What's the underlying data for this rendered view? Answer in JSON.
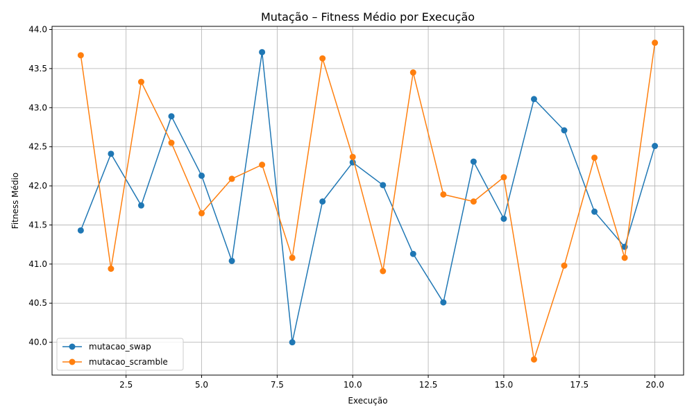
{
  "chart_data": {
    "type": "line",
    "title": "Mutação – Fitness Médio por Execução",
    "xlabel": "Execução",
    "ylabel": "Fitness Médio",
    "xlim": [
      0.05,
      20.95
    ],
    "ylim": [
      39.58,
      44.04
    ],
    "xticks": [
      2.5,
      5.0,
      7.5,
      10.0,
      12.5,
      15.0,
      17.5,
      20.0
    ],
    "xtick_labels": [
      "2.5",
      "5.0",
      "7.5",
      "10.0",
      "12.5",
      "15.0",
      "17.5",
      "20.0"
    ],
    "yticks": [
      40.0,
      40.5,
      41.0,
      41.5,
      42.0,
      42.5,
      43.0,
      43.5,
      44.0
    ],
    "ytick_labels": [
      "40.0",
      "40.5",
      "41.0",
      "41.5",
      "42.0",
      "42.5",
      "43.0",
      "43.5",
      "44.0"
    ],
    "grid": true,
    "legend_position": "lower-left",
    "x": [
      1,
      2,
      3,
      4,
      5,
      6,
      7,
      8,
      9,
      10,
      11,
      12,
      13,
      14,
      15,
      16,
      17,
      18,
      19,
      20
    ],
    "series": [
      {
        "name": "mutacao_swap",
        "color": "#1f77b4",
        "values": [
          41.43,
          42.41,
          41.75,
          42.89,
          42.13,
          41.04,
          43.71,
          40.0,
          41.8,
          42.3,
          42.01,
          41.13,
          40.51,
          42.31,
          41.58,
          43.11,
          42.71,
          41.67,
          41.22,
          42.51
        ]
      },
      {
        "name": "mutacao_scramble",
        "color": "#ff7f0e",
        "values": [
          43.67,
          40.94,
          43.33,
          42.55,
          41.65,
          42.09,
          42.27,
          41.08,
          43.63,
          42.37,
          40.91,
          43.45,
          41.89,
          41.8,
          42.11,
          39.78,
          40.98,
          42.36,
          41.08,
          43.83
        ]
      }
    ]
  }
}
